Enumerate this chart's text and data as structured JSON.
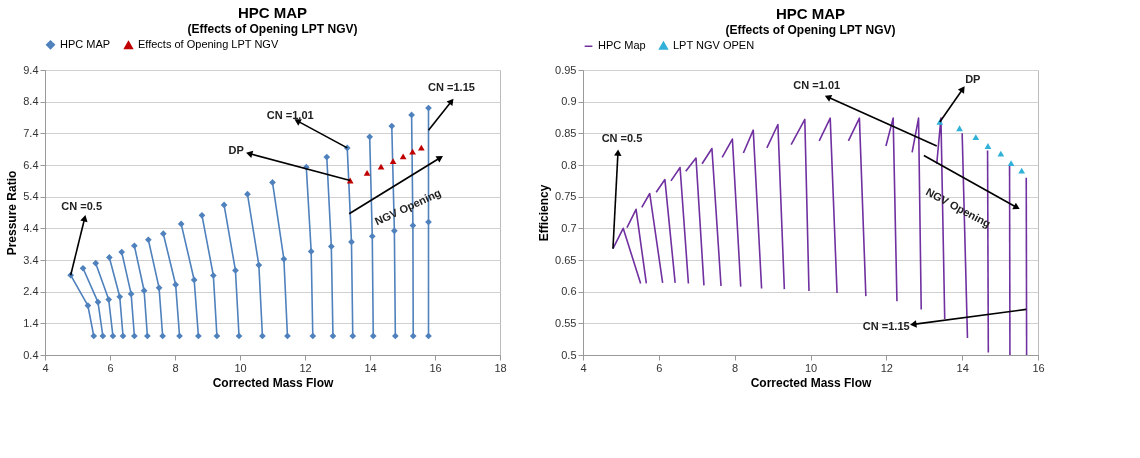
{
  "chart_data": [
    {
      "type": "line",
      "title": "HPC MAP",
      "subtitle": "(Effects of Opening LPT NGV)",
      "xlabel": "Corrected Mass Flow",
      "ylabel": "Pressure Ratio",
      "xlim": [
        4,
        18
      ],
      "xticks": [
        4,
        6,
        8,
        10,
        12,
        14,
        16,
        18
      ],
      "ylim": [
        0.4,
        9.4
      ],
      "yticks": [
        0.4,
        1.4,
        2.4,
        3.4,
        4.4,
        5.4,
        6.4,
        7.4,
        8.4,
        9.4
      ],
      "grid": "y",
      "legend": "top",
      "series": [
        {
          "name": "HPC MAP",
          "color": "#4f81bd",
          "marker": "diamond",
          "x": [
            4.79,
            5.32,
            5.5,
            null,
            5.17,
            5.63,
            5.78,
            null,
            5.56,
            5.96,
            6.09,
            null,
            5.98,
            6.3,
            6.4,
            null,
            6.36,
            6.65,
            6.75,
            null,
            6.75,
            7.05,
            7.15,
            null,
            7.18,
            7.51,
            7.62,
            null,
            7.64,
            8.02,
            8.14,
            null,
            8.19,
            8.59,
            8.72,
            null,
            8.83,
            9.18,
            9.29,
            null,
            9.51,
            9.86,
            9.97,
            null,
            10.23,
            10.58,
            10.69,
            null,
            11.0,
            11.35,
            11.46,
            null,
            12.04,
            12.19,
            12.24,
            null,
            12.67,
            12.81,
            12.86,
            null,
            13.3,
            13.43,
            13.47,
            null,
            13.99,
            14.07,
            14.1,
            null,
            14.67,
            14.75,
            14.78,
            null,
            15.28,
            15.32,
            15.33,
            null,
            15.8,
            15.8,
            15.8
          ],
          "values": [
            2.92,
            1.96,
            1.0,
            null,
            3.14,
            2.07,
            1.0,
            null,
            3.3,
            2.15,
            1.0,
            null,
            3.48,
            2.24,
            1.0,
            null,
            3.65,
            2.33,
            1.0,
            null,
            3.85,
            2.43,
            1.0,
            null,
            4.04,
            2.52,
            1.0,
            null,
            4.23,
            2.62,
            1.0,
            null,
            4.54,
            2.77,
            1.0,
            null,
            4.81,
            2.91,
            1.0,
            null,
            5.14,
            3.07,
            1.0,
            null,
            5.48,
            3.24,
            1.0,
            null,
            5.85,
            3.43,
            1.0,
            null,
            6.33,
            3.67,
            1.0,
            null,
            6.65,
            3.83,
            1.0,
            null,
            6.94,
            3.97,
            1.0,
            null,
            7.29,
            4.15,
            1.0,
            null,
            7.63,
            4.32,
            1.0,
            null,
            7.98,
            4.49,
            1.0,
            null,
            8.2,
            4.6,
            1.0
          ]
        },
        {
          "name": "Effects of Opening LPT NGV",
          "type": "scatter",
          "color": "#c00000",
          "marker": "triangle",
          "x": [
            13.39,
            13.91,
            14.34,
            14.71,
            15.02,
            15.31,
            15.58
          ],
          "values": [
            5.91,
            6.15,
            6.35,
            6.52,
            6.67,
            6.82,
            6.95
          ]
        }
      ],
      "annotations": [
        {
          "text": "CN =0.5",
          "x": 4.79,
          "y": 2.92
        },
        {
          "text": "CN =1.01",
          "x": 13.3,
          "y": 6.94
        },
        {
          "text": "CN =1.15",
          "x": 15.8,
          "y": 7.5
        },
        {
          "text": "DP",
          "x": 13.39,
          "y": 5.91
        },
        {
          "text": "NGV Opening",
          "x": 13.36,
          "y": 4.86
        }
      ]
    },
    {
      "type": "line",
      "title": "HPC  MAP",
      "subtitle": "(Effects of Opening LPT NGV)",
      "xlabel": "Corrected Mass Flow",
      "ylabel": "Efficiency",
      "xlim": [
        4,
        16
      ],
      "xticks": [
        4,
        6,
        8,
        10,
        12,
        14,
        16
      ],
      "ylim": [
        0.5,
        0.95
      ],
      "yticks": [
        0.5,
        0.55,
        0.6,
        0.65,
        0.7,
        0.75,
        0.8,
        0.85,
        0.9,
        0.95
      ],
      "grid": "y",
      "legend": "top",
      "series": [
        {
          "name": "HPC Map",
          "color": "#7030a0",
          "marker": "none",
          "x": [
            4.79,
            5.06,
            5.52,
            null,
            5.16,
            5.4,
            5.67,
            null,
            5.55,
            5.76,
            6.1,
            null,
            5.93,
            6.16,
            6.43,
            null,
            6.32,
            6.56,
            6.78,
            null,
            6.71,
            6.98,
            7.19,
            null,
            7.14,
            7.4,
            7.64,
            null,
            7.67,
            7.94,
            8.16,
            null,
            8.23,
            8.49,
            8.71,
            null,
            8.85,
            9.14,
            9.31,
            null,
            9.49,
            9.85,
            9.96,
            null,
            10.23,
            10.52,
            10.7,
            null,
            11.0,
            11.29,
            11.46,
            null,
            11.99,
            12.18,
            12.28,
            null,
            12.68,
            12.85,
            12.92,
            null,
            13.33,
            13.44,
            13.54,
            null,
            14.0,
            14.14,
            null,
            14.67,
            14.69,
            null,
            15.25,
            15.26,
            null,
            15.69,
            15.7
          ],
          "values": [
            0.668,
            0.7,
            0.613,
            null,
            0.701,
            0.73,
            0.613,
            null,
            0.733,
            0.755,
            0.614,
            null,
            0.757,
            0.777,
            0.614,
            null,
            0.775,
            0.796,
            0.613,
            null,
            0.79,
            0.811,
            0.61,
            null,
            0.802,
            0.826,
            0.609,
            null,
            0.812,
            0.841,
            0.608,
            null,
            0.819,
            0.855,
            0.605,
            null,
            0.827,
            0.864,
            0.604,
            null,
            0.832,
            0.872,
            0.601,
            null,
            0.838,
            0.874,
            0.598,
            null,
            0.838,
            0.874,
            0.593,
            null,
            0.83,
            0.874,
            0.585,
            null,
            0.82,
            0.874,
            0.572,
            null,
            0.802,
            0.874,
            0.557,
            null,
            0.85,
            0.527,
            null,
            0.823,
            0.504,
            null,
            0.8,
            0.5,
            null,
            0.78,
            0.5
          ]
        },
        {
          "name": "LPT NGV OPEN",
          "type": "scatter",
          "color": "#31b0d8",
          "marker": "triangle",
          "x": [
            13.41,
            13.93,
            14.36,
            14.68,
            15.02,
            15.29,
            15.57
          ],
          "values": [
            0.868,
            0.858,
            0.844,
            0.83,
            0.818,
            0.803,
            0.791
          ]
        }
      ],
      "annotations": [
        {
          "text": "CN =0.5",
          "x": 4.79,
          "y": 0.668
        },
        {
          "text": "CN =1.01",
          "x": 13.33,
          "y": 0.83
        },
        {
          "text": "DP",
          "x": 13.41,
          "y": 0.868
        },
        {
          "text": "NGV Opening",
          "x": 12.99,
          "y": 0.815
        },
        {
          "text": "CN =1.15",
          "x": 15.69,
          "y": 0.572
        }
      ]
    }
  ]
}
